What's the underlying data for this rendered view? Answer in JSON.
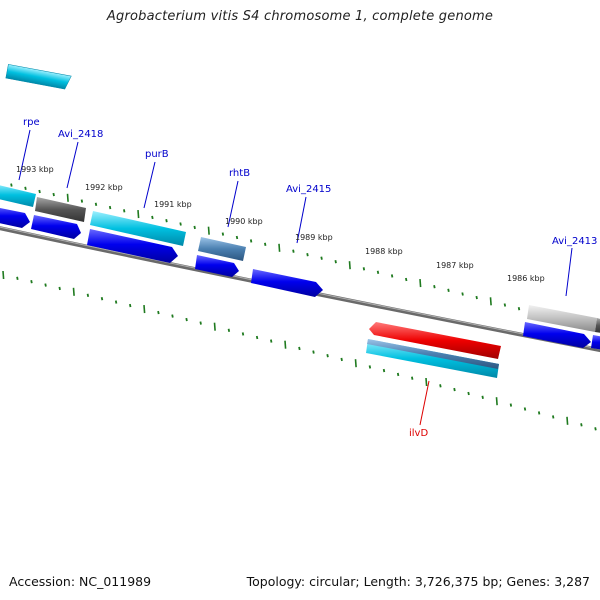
{
  "title": "Agrobacterium vitis S4 chromosome 1, complete genome",
  "footer": {
    "accession": "Accession: NC_011989",
    "topology": "Topology: circular; Length: 3,726,375 bp; Genes: 3,287"
  },
  "colors": {
    "backbone": "#808080",
    "ticks": "#1f7a1f",
    "forward_cds": "#0000ee",
    "teal_feature": "#00c0d8",
    "dark_gray_feature": "#555555",
    "light_gray_feature": "#bbbbbb",
    "steel_feature": "#4a7fb0",
    "red_feature": "#ee0000",
    "gene_label": "#0000cc",
    "highlight_label": "#dd0000"
  },
  "kbp_labels": [
    "1993 kbp",
    "1992 kbp",
    "1991 kbp",
    "1990 kbp",
    "1989 kbp",
    "1988 kbp",
    "1987 kbp",
    "1986 kbp"
  ],
  "gene_labels": [
    "rpe",
    "Avi_2418",
    "purB",
    "rhtB",
    "Avi_2415",
    "Avi_2413",
    "ilvD"
  ]
}
